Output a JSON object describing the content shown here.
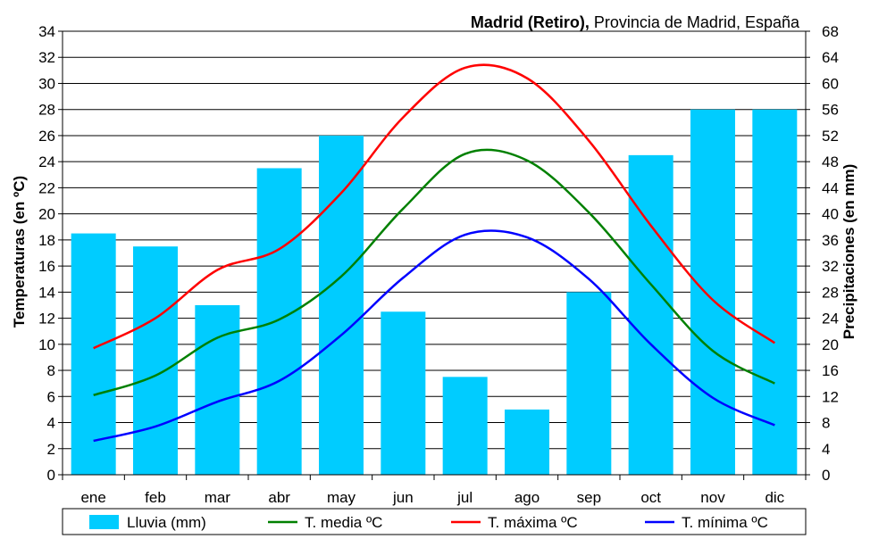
{
  "chart_data": {
    "type": "bar+line",
    "title_bold": "Madrid (Retiro),",
    "title_rest": "Provincia de Madrid, España",
    "categories": [
      "ene",
      "feb",
      "mar",
      "abr",
      "may",
      "jun",
      "jul",
      "ago",
      "sep",
      "oct",
      "nov",
      "dic"
    ],
    "ylabel_left": "Temperaturas (en ºC)",
    "ylabel_right": "Precipitaciones (en mm)",
    "ylim_left": [
      0,
      34
    ],
    "ylim_right": [
      0,
      68
    ],
    "yticks_left": [
      "0",
      "2",
      "4",
      "6",
      "8",
      "10",
      "12",
      "14",
      "16",
      "18",
      "20",
      "22",
      "24",
      "26",
      "28",
      "30",
      "32",
      "34"
    ],
    "yticks_right": [
      "0",
      "4",
      "8",
      "12",
      "16",
      "20",
      "24",
      "28",
      "32",
      "36",
      "40",
      "44",
      "48",
      "52",
      "56",
      "60",
      "64",
      "68"
    ],
    "grid": true,
    "legend_position": "bottom",
    "bars": {
      "name": "Lluvia (mm)",
      "color": "#00ccff",
      "axis": "right",
      "values": [
        37,
        35,
        26,
        47,
        52,
        25,
        15,
        10,
        28,
        49,
        56,
        56
      ]
    },
    "series": [
      {
        "name": "T. media ºC",
        "color": "#008000",
        "axis": "left",
        "values": [
          6.1,
          7.6,
          10.5,
          11.9,
          15.2,
          20.4,
          24.6,
          24.1,
          20.1,
          14.6,
          9.5,
          7.0
        ]
      },
      {
        "name": "T. máxima ºC",
        "color": "#ff0000",
        "axis": "left",
        "values": [
          9.7,
          12.0,
          15.7,
          17.3,
          21.6,
          27.4,
          31.2,
          30.4,
          25.6,
          19.1,
          13.4,
          10.1
        ]
      },
      {
        "name": "T. mínima ºC",
        "color": "#0000ff",
        "axis": "left",
        "values": [
          2.6,
          3.7,
          5.6,
          7.2,
          10.7,
          15.1,
          18.4,
          18.2,
          15.0,
          10.0,
          5.9,
          3.8
        ]
      }
    ]
  }
}
